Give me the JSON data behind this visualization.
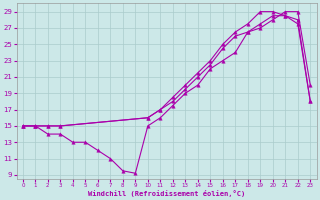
{
  "xlabel": "Windchill (Refroidissement éolien,°C)",
  "background_color": "#cce8e8",
  "line_color": "#aa00aa",
  "grid_color": "#aacccc",
  "xlim": [
    -0.5,
    23.5
  ],
  "ylim": [
    8.5,
    30
  ],
  "yticks": [
    9,
    11,
    13,
    15,
    17,
    19,
    21,
    23,
    25,
    27,
    29
  ],
  "xticks": [
    0,
    1,
    2,
    3,
    4,
    5,
    6,
    7,
    8,
    9,
    10,
    11,
    12,
    13,
    14,
    15,
    16,
    17,
    18,
    19,
    20,
    21,
    22,
    23
  ],
  "line1_x": [
    0,
    1,
    2,
    3,
    4,
    5,
    6,
    7,
    8,
    9,
    10,
    11,
    12,
    13,
    14,
    15,
    16,
    17,
    18,
    19,
    20,
    21,
    22,
    23
  ],
  "line1_y": [
    15,
    15,
    14,
    14,
    13,
    13,
    12,
    11,
    9.5,
    9.2,
    15,
    16,
    17.5,
    19,
    20,
    22,
    23,
    24,
    26.5,
    27,
    28,
    29,
    29,
    20
  ],
  "line2_x": [
    0,
    1,
    2,
    3,
    10,
    11,
    12,
    13,
    14,
    15,
    16,
    17,
    18,
    19,
    20,
    21,
    22,
    23
  ],
  "line2_y": [
    15,
    15,
    15,
    15,
    16,
    17,
    18.5,
    20,
    21.5,
    23,
    25,
    26.5,
    27.5,
    29,
    29,
    28.5,
    28,
    18
  ],
  "line3_x": [
    0,
    1,
    2,
    3,
    10,
    11,
    12,
    13,
    14,
    15,
    16,
    17,
    18,
    19,
    20,
    21,
    22,
    23
  ],
  "line3_y": [
    15,
    15,
    15,
    15,
    16,
    17,
    18,
    19.5,
    21,
    22.5,
    24.5,
    26,
    26.5,
    27.5,
    28.5,
    28.5,
    27.5,
    18
  ]
}
